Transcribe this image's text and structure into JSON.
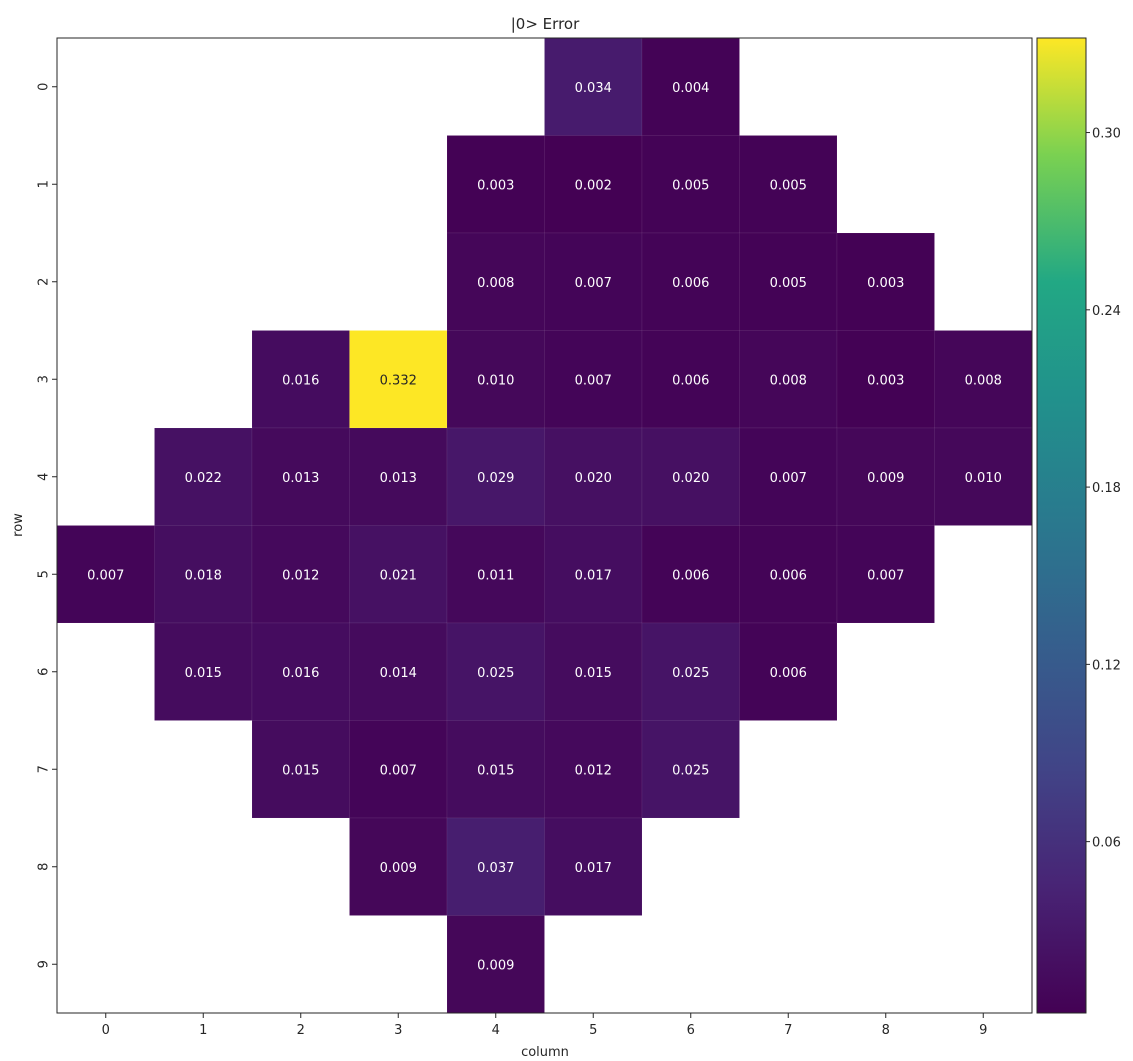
{
  "chart_data": {
    "type": "heatmap",
    "title": "|0> Error",
    "xlabel": "column",
    "ylabel": "row",
    "x_categories": [
      "0",
      "1",
      "2",
      "3",
      "4",
      "5",
      "6",
      "7",
      "8",
      "9"
    ],
    "y_categories": [
      "0",
      "1",
      "2",
      "3",
      "4",
      "5",
      "6",
      "7",
      "8",
      "9"
    ],
    "cells": [
      {
        "row": 0,
        "col": 5,
        "value": 0.034,
        "label": "0.034"
      },
      {
        "row": 0,
        "col": 6,
        "value": 0.004,
        "label": "0.004"
      },
      {
        "row": 1,
        "col": 4,
        "value": 0.003,
        "label": "0.003"
      },
      {
        "row": 1,
        "col": 5,
        "value": 0.002,
        "label": "0.002"
      },
      {
        "row": 1,
        "col": 6,
        "value": 0.005,
        "label": "0.005"
      },
      {
        "row": 1,
        "col": 7,
        "value": 0.005,
        "label": "0.005"
      },
      {
        "row": 2,
        "col": 4,
        "value": 0.008,
        "label": "0.008"
      },
      {
        "row": 2,
        "col": 5,
        "value": 0.007,
        "label": "0.007"
      },
      {
        "row": 2,
        "col": 6,
        "value": 0.006,
        "label": "0.006"
      },
      {
        "row": 2,
        "col": 7,
        "value": 0.005,
        "label": "0.005"
      },
      {
        "row": 2,
        "col": 8,
        "value": 0.003,
        "label": "0.003"
      },
      {
        "row": 3,
        "col": 2,
        "value": 0.016,
        "label": "0.016"
      },
      {
        "row": 3,
        "col": 3,
        "value": 0.332,
        "label": "0.332"
      },
      {
        "row": 3,
        "col": 4,
        "value": 0.01,
        "label": "0.010"
      },
      {
        "row": 3,
        "col": 5,
        "value": 0.007,
        "label": "0.007"
      },
      {
        "row": 3,
        "col": 6,
        "value": 0.006,
        "label": "0.006"
      },
      {
        "row": 3,
        "col": 7,
        "value": 0.008,
        "label": "0.008"
      },
      {
        "row": 3,
        "col": 8,
        "value": 0.003,
        "label": "0.003"
      },
      {
        "row": 3,
        "col": 9,
        "value": 0.008,
        "label": "0.008"
      },
      {
        "row": 4,
        "col": 1,
        "value": 0.022,
        "label": "0.022"
      },
      {
        "row": 4,
        "col": 2,
        "value": 0.013,
        "label": "0.013"
      },
      {
        "row": 4,
        "col": 3,
        "value": 0.013,
        "label": "0.013"
      },
      {
        "row": 4,
        "col": 4,
        "value": 0.029,
        "label": "0.029"
      },
      {
        "row": 4,
        "col": 5,
        "value": 0.02,
        "label": "0.020"
      },
      {
        "row": 4,
        "col": 6,
        "value": 0.02,
        "label": "0.020"
      },
      {
        "row": 4,
        "col": 7,
        "value": 0.007,
        "label": "0.007"
      },
      {
        "row": 4,
        "col": 8,
        "value": 0.009,
        "label": "0.009"
      },
      {
        "row": 4,
        "col": 9,
        "value": 0.01,
        "label": "0.010"
      },
      {
        "row": 5,
        "col": 0,
        "value": 0.007,
        "label": "0.007"
      },
      {
        "row": 5,
        "col": 1,
        "value": 0.018,
        "label": "0.018"
      },
      {
        "row": 5,
        "col": 2,
        "value": 0.012,
        "label": "0.012"
      },
      {
        "row": 5,
        "col": 3,
        "value": 0.021,
        "label": "0.021"
      },
      {
        "row": 5,
        "col": 4,
        "value": 0.011,
        "label": "0.011"
      },
      {
        "row": 5,
        "col": 5,
        "value": 0.017,
        "label": "0.017"
      },
      {
        "row": 5,
        "col": 6,
        "value": 0.006,
        "label": "0.006"
      },
      {
        "row": 5,
        "col": 7,
        "value": 0.006,
        "label": "0.006"
      },
      {
        "row": 5,
        "col": 8,
        "value": 0.007,
        "label": "0.007"
      },
      {
        "row": 6,
        "col": 1,
        "value": 0.015,
        "label": "0.015"
      },
      {
        "row": 6,
        "col": 2,
        "value": 0.016,
        "label": "0.016"
      },
      {
        "row": 6,
        "col": 3,
        "value": 0.014,
        "label": "0.014"
      },
      {
        "row": 6,
        "col": 4,
        "value": 0.025,
        "label": "0.025"
      },
      {
        "row": 6,
        "col": 5,
        "value": 0.015,
        "label": "0.015"
      },
      {
        "row": 6,
        "col": 6,
        "value": 0.025,
        "label": "0.025"
      },
      {
        "row": 6,
        "col": 7,
        "value": 0.006,
        "label": "0.006"
      },
      {
        "row": 7,
        "col": 2,
        "value": 0.015,
        "label": "0.015"
      },
      {
        "row": 7,
        "col": 3,
        "value": 0.007,
        "label": "0.007"
      },
      {
        "row": 7,
        "col": 4,
        "value": 0.015,
        "label": "0.015"
      },
      {
        "row": 7,
        "col": 5,
        "value": 0.012,
        "label": "0.012"
      },
      {
        "row": 7,
        "col": 6,
        "value": 0.025,
        "label": "0.025"
      },
      {
        "row": 8,
        "col": 3,
        "value": 0.009,
        "label": "0.009"
      },
      {
        "row": 8,
        "col": 4,
        "value": 0.037,
        "label": "0.037"
      },
      {
        "row": 8,
        "col": 5,
        "value": 0.017,
        "label": "0.017"
      },
      {
        "row": 9,
        "col": 4,
        "value": 0.009,
        "label": "0.009"
      }
    ],
    "colorbar": {
      "colormap": "viridis",
      "vmin": 0.002,
      "vmax": 0.332,
      "ticks": [
        0.06,
        0.12,
        0.18,
        0.24,
        0.3
      ],
      "tick_labels": [
        "0.06",
        "0.12",
        "0.18",
        "0.24",
        "0.30"
      ]
    },
    "grid": false
  }
}
